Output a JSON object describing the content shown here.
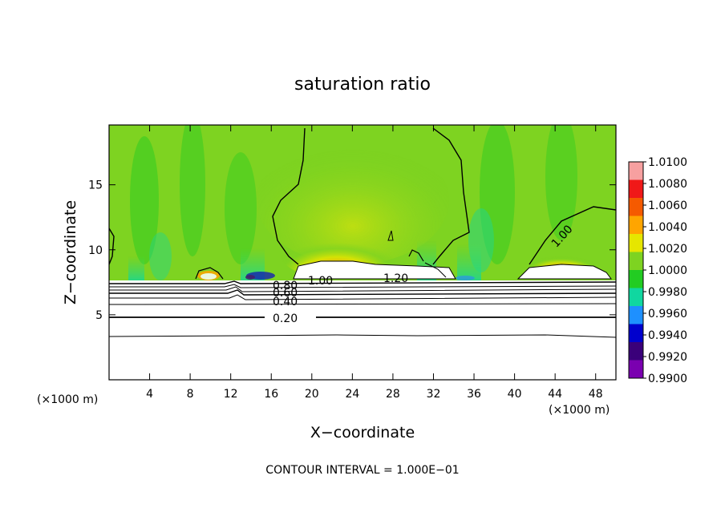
{
  "chart_data": {
    "type": "heatmap",
    "title": "saturation ratio",
    "xlabel": "X−coordinate",
    "ylabel": "Z−coordinate",
    "x_unit": "(×1000 m)",
    "y_unit": "",
    "xlim": [
      0,
      50
    ],
    "ylim": [
      0,
      19.6
    ],
    "x_ticks": [
      4,
      8,
      12,
      16,
      20,
      24,
      28,
      32,
      36,
      40,
      44,
      48
    ],
    "x_tick_labels": [
      "4",
      "8",
      "12",
      "16",
      "20",
      "24",
      "28",
      "32",
      "36",
      "40",
      "44",
      "48"
    ],
    "y_ticks": [
      5,
      10,
      15
    ],
    "y_tick_labels": [
      "5",
      "10",
      "15"
    ],
    "colorbar": {
      "levels": [
        1.01,
        1.008,
        1.006,
        1.004,
        1.002,
        1.0,
        0.998,
        0.996,
        0.994,
        0.992,
        0.99
      ],
      "labels": [
        "1.0100",
        "1.0080",
        "1.0060",
        "1.0040",
        "1.0020",
        "1.0000",
        "0.9980",
        "0.9960",
        "0.9940",
        "0.9920",
        "0.9900"
      ],
      "colors": [
        "#f7a0a0",
        "#f01818",
        "#f55a00",
        "#ffa500",
        "#e6e600",
        "#7ed321",
        "#22cc22",
        "#10d7a0",
        "#1e90ff",
        "#0000cd",
        "#3a007a",
        "#7a00b0"
      ],
      "placement": "right"
    },
    "contours": {
      "interval_text": "CONTOUR INTERVAL = 1.000E−01",
      "labeled_levels": [
        {
          "text": "0.20",
          "x": 16.3,
          "z": 4.9
        },
        {
          "text": "0.40",
          "x": 16.3,
          "z": 6.0
        },
        {
          "text": "0.60",
          "x": 16.3,
          "z": 6.8
        },
        {
          "text": "0.80",
          "x": 16.3,
          "z": 7.4
        },
        {
          "text": "1.00",
          "x": 20.2,
          "z": 7.6
        },
        {
          "text": "1.20",
          "x": 28.2,
          "z": 7.9
        },
        {
          "text": "1.00",
          "x": 44.5,
          "z": 11.6
        }
      ],
      "layer_heights_z": [
        3.4,
        4.9,
        5.6,
        6.0,
        6.4,
        6.8,
        7.1,
        7.4,
        7.7
      ]
    },
    "grid": false
  }
}
